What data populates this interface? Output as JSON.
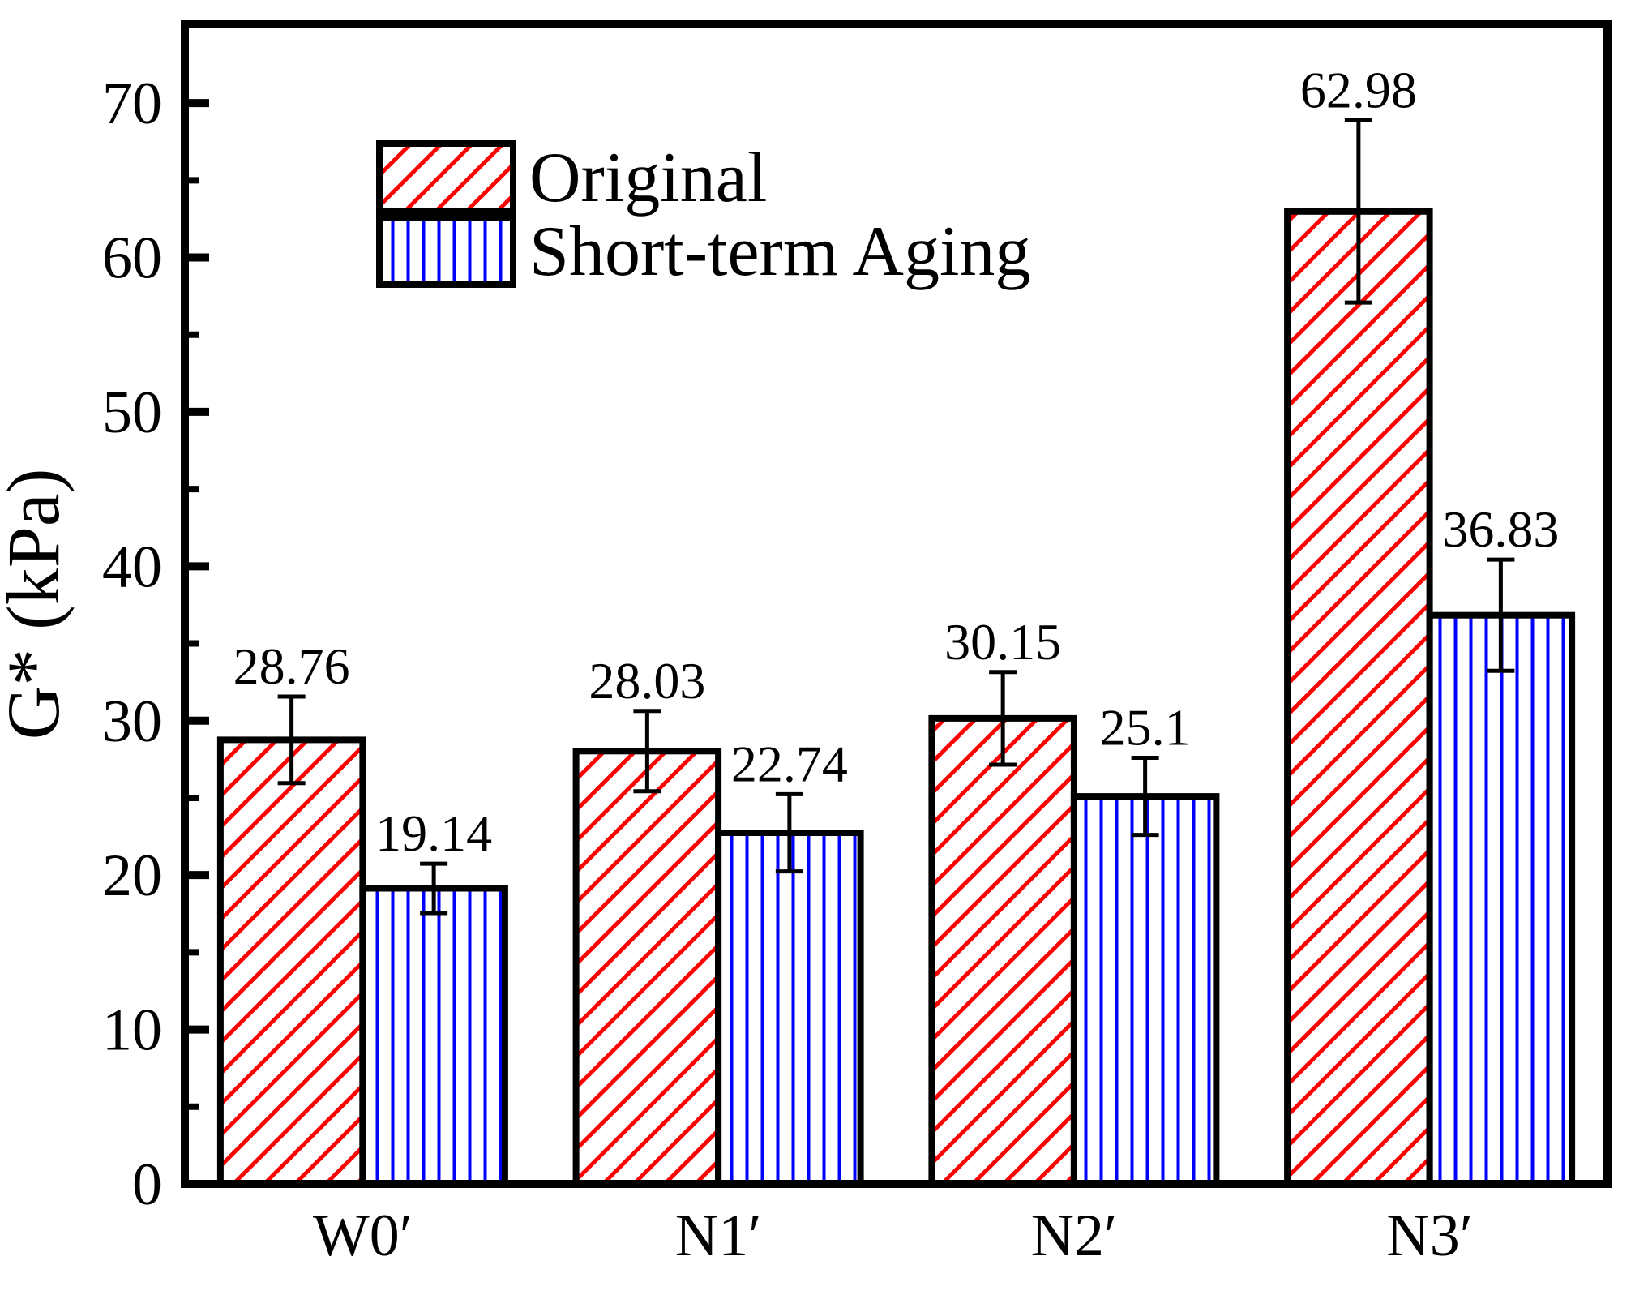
{
  "chart_data": {
    "type": "bar",
    "title": "",
    "xlabel": "",
    "ylabel": "G* (kPa)",
    "categories": [
      "W0′",
      "N1′",
      "N2′",
      "N3′"
    ],
    "series": [
      {
        "name": "Original",
        "hatch": "diagonal",
        "color": "#FF0000",
        "values": [
          28.76,
          28.03,
          30.15,
          62.98
        ],
        "errors": [
          2.8,
          2.6,
          3.0,
          5.9
        ],
        "value_labels": [
          "28.76",
          "28.03",
          "30.15",
          "62.98"
        ]
      },
      {
        "name": "Short-term Aging",
        "hatch": "vertical",
        "color": "#0000FF",
        "values": [
          19.14,
          22.74,
          25.1,
          36.83
        ],
        "errors": [
          1.6,
          2.5,
          2.5,
          3.6
        ],
        "value_labels": [
          "19.14",
          "22.74",
          "25.1",
          "36.83"
        ]
      }
    ],
    "ylim": [
      0,
      75.1
    ],
    "y_major_ticks": [
      0,
      10,
      20,
      30,
      40,
      50,
      60,
      70
    ],
    "y_tick_labels": [
      "0",
      "10",
      "20",
      "30",
      "40",
      "50",
      "60",
      "70"
    ],
    "y_minor_step": 5,
    "grid": false,
    "legend_position": "top-left",
    "frame_color": "#000000",
    "background": "#FFFFFF"
  }
}
